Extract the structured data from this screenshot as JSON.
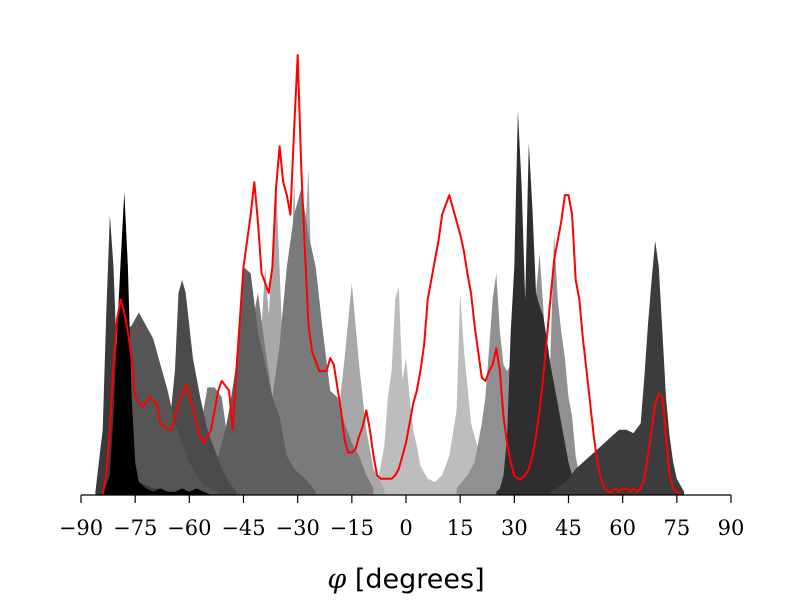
{
  "chart_data": {
    "type": "area",
    "title": "",
    "xlabel_symbol": "φ",
    "xlabel_text": " [degrees]",
    "ylabel": "",
    "xlim": [
      -90,
      90
    ],
    "xticks": [
      -90,
      -75,
      -60,
      -45,
      -30,
      -15,
      0,
      15,
      30,
      45,
      60,
      75,
      90
    ],
    "xtick_labels": [
      "−90",
      "−75",
      "−60",
      "−45",
      "−30",
      "−15",
      "0",
      "15",
      "30",
      "45",
      "60",
      "75",
      "90"
    ],
    "ylim": [
      0,
      1.0
    ],
    "y_axis_visible": false,
    "grid": false,
    "legend": "none",
    "distributions": [
      {
        "color": "#bdbdbd",
        "x": [
          -8,
          -6,
          -5,
          -4,
          -3,
          -2,
          -1,
          0,
          1,
          2,
          3,
          4,
          6,
          8,
          10,
          12,
          14,
          15,
          16,
          18,
          20,
          22,
          24,
          26
        ],
        "values": [
          0.03,
          0.15,
          0.3,
          0.38,
          0.6,
          0.64,
          0.35,
          0.42,
          0.3,
          0.2,
          0.15,
          0.09,
          0.05,
          0.04,
          0.06,
          0.12,
          0.26,
          0.62,
          0.45,
          0.22,
          0.14,
          0.08,
          0.04,
          0.02
        ]
      },
      {
        "color": "#a8a8a8",
        "x": [
          -46,
          -43,
          -41,
          -40,
          -39,
          -38,
          -36,
          -34,
          -32,
          -31,
          -30,
          -29,
          -28,
          -27,
          -26,
          -25,
          -23,
          -22,
          -21,
          -19,
          -17,
          -15,
          -13,
          -11,
          -9,
          -6
        ],
        "values": [
          0.02,
          0.1,
          0.25,
          0.52,
          0.7,
          0.55,
          0.97,
          0.42,
          0.56,
          0.98,
          0.62,
          0.5,
          0.8,
          1.0,
          0.6,
          0.3,
          0.46,
          0.3,
          0.26,
          0.22,
          0.42,
          0.65,
          0.4,
          0.2,
          0.08,
          0.02
        ]
      },
      {
        "color": "#909090",
        "x": [
          14,
          17,
          19,
          20,
          21,
          22,
          23,
          24,
          25,
          26,
          27,
          28,
          30,
          31,
          32,
          33,
          35,
          36,
          37,
          38,
          39,
          40,
          41,
          42,
          43,
          44,
          45,
          46,
          47,
          48,
          50,
          52
        ],
        "values": [
          0.02,
          0.06,
          0.1,
          0.16,
          0.22,
          0.3,
          0.45,
          0.6,
          0.68,
          0.5,
          0.4,
          0.38,
          0.42,
          0.4,
          0.46,
          0.36,
          0.6,
          0.62,
          0.74,
          0.58,
          0.4,
          0.42,
          0.8,
          0.6,
          0.5,
          0.42,
          0.3,
          0.24,
          0.12,
          0.06,
          0.02,
          0.01
        ]
      },
      {
        "color": "#7a7a7a",
        "x": [
          -68,
          -64,
          -60,
          -57,
          -55,
          -53,
          -51,
          -50,
          -49,
          -47,
          -45,
          -43,
          -41,
          -39,
          -37,
          -35,
          -33,
          -31,
          -29,
          -27,
          -25,
          -23,
          -21,
          -19,
          -17,
          -15,
          -13,
          -11,
          -9
        ],
        "values": [
          0.01,
          0.04,
          0.1,
          0.2,
          0.33,
          0.33,
          0.3,
          0.22,
          0.16,
          0.22,
          0.32,
          0.5,
          0.62,
          0.45,
          0.3,
          0.46,
          0.7,
          0.86,
          0.94,
          0.8,
          0.7,
          0.5,
          0.32,
          0.3,
          0.22,
          0.16,
          0.12,
          0.06,
          0.02
        ]
      },
      {
        "color": "#5e5e5e",
        "x": [
          -73,
          -70,
          -68,
          -66,
          -64,
          -62,
          -60,
          -58,
          -56,
          -54,
          -52,
          -50,
          -49,
          -47,
          -45,
          -43,
          -41,
          -39,
          -37,
          -35,
          -33,
          -31,
          -29,
          -27,
          -25
        ],
        "values": [
          0.02,
          0.06,
          0.08,
          0.1,
          0.11,
          0.1,
          0.12,
          0.1,
          0.08,
          0.06,
          0.12,
          0.2,
          0.26,
          0.4,
          0.7,
          0.68,
          0.5,
          0.4,
          0.3,
          0.24,
          0.12,
          0.08,
          0.06,
          0.04,
          0.01
        ]
      },
      {
        "color": "#4a4a4a",
        "x": [
          -78,
          -76,
          -74,
          -72,
          -70,
          -68,
          -66,
          -64,
          -63,
          -62,
          -61,
          -59,
          -57,
          -55,
          -53,
          -51,
          -49,
          -47
        ],
        "values": [
          0.01,
          0.04,
          0.06,
          0.08,
          0.1,
          0.12,
          0.16,
          0.38,
          0.62,
          0.66,
          0.62,
          0.42,
          0.3,
          0.2,
          0.14,
          0.08,
          0.04,
          0.01
        ]
      },
      {
        "color": "#555555",
        "x": [
          -84,
          -82,
          -80,
          -78,
          -76,
          -74,
          -72,
          -70,
          -68,
          -66,
          -64,
          -62,
          -60,
          -58,
          -56,
          -52
        ],
        "values": [
          0.02,
          0.1,
          0.35,
          0.5,
          0.52,
          0.56,
          0.52,
          0.48,
          0.4,
          0.32,
          0.22,
          0.16,
          0.1,
          0.06,
          0.03,
          0.01
        ]
      },
      {
        "color": "#3a3a3a",
        "x": [
          -86,
          -84,
          -83,
          -82,
          -81,
          -80,
          -79,
          -78,
          -77,
          -76,
          -75,
          -74,
          -72,
          -70,
          -68,
          -66
        ],
        "values": [
          0.01,
          0.2,
          0.56,
          0.86,
          0.7,
          0.4,
          0.26,
          0.3,
          0.2,
          0.1,
          0.06,
          0.04,
          0.03,
          0.02,
          0.02,
          0.01
        ]
      },
      {
        "color": "#000000",
        "x": [
          -84,
          -83,
          -82,
          -81,
          -80,
          -79,
          -78,
          -77,
          -76,
          -75,
          -74,
          -72,
          -70,
          -68,
          -66,
          -64,
          -62,
          -60,
          -58,
          -56,
          -54
        ],
        "values": [
          0.01,
          0.03,
          0.06,
          0.24,
          0.5,
          0.72,
          0.93,
          0.7,
          0.3,
          0.1,
          0.04,
          0.02,
          0.01,
          0.02,
          0.01,
          0.01,
          0.02,
          0.01,
          0.02,
          0.01,
          0.0
        ]
      },
      {
        "color": "#2e2e2e",
        "x": [
          25,
          26,
          27,
          28,
          29,
          30,
          31,
          32,
          33,
          34,
          35,
          36,
          37,
          38,
          39,
          40,
          41,
          42,
          43,
          44,
          45,
          46,
          47,
          48,
          50
        ],
        "values": [
          0.01,
          0.02,
          0.06,
          0.18,
          0.5,
          0.7,
          1.18,
          0.95,
          0.6,
          1.08,
          0.88,
          0.62,
          0.58,
          0.55,
          0.48,
          0.4,
          0.34,
          0.28,
          0.22,
          0.16,
          0.1,
          0.06,
          0.04,
          0.02,
          0.01
        ]
      },
      {
        "color": "#3c3c3c",
        "x": [
          40,
          43,
          45,
          47,
          49,
          51,
          53,
          55,
          57,
          59,
          61,
          63,
          65,
          66,
          67,
          68,
          69,
          70,
          71,
          72,
          73,
          74,
          75,
          77
        ],
        "values": [
          0.01,
          0.03,
          0.05,
          0.08,
          0.1,
          0.12,
          0.14,
          0.16,
          0.18,
          0.2,
          0.2,
          0.19,
          0.22,
          0.36,
          0.52,
          0.66,
          0.78,
          0.7,
          0.5,
          0.3,
          0.18,
          0.1,
          0.05,
          0.01
        ]
      },
      {
        "color": "#ff0000",
        "kind": "line",
        "x": [
          -84,
          -83,
          -82,
          -81,
          -80,
          -79,
          -78,
          -77,
          -76,
          -75,
          -73,
          -71,
          -69,
          -68,
          -66,
          -65,
          -63,
          -61,
          -60,
          -58,
          -57,
          -56,
          -54,
          -52,
          -51,
          -49,
          -48,
          -47,
          -45,
          -43,
          -42,
          -41,
          -40,
          -38,
          -37,
          -36,
          -35,
          -34,
          -33,
          -32,
          -31,
          -30,
          -29,
          -28,
          -27,
          -26,
          -24,
          -23,
          -22,
          -21,
          -20,
          -18,
          -17,
          -16,
          -15,
          -14,
          -13,
          -12,
          -11,
          -10,
          -9,
          -8,
          -7,
          -6,
          -4,
          -3,
          -2,
          -1,
          0,
          1,
          2,
          3,
          4,
          5,
          6,
          8,
          9,
          10,
          12,
          13,
          15,
          16,
          17,
          18,
          19,
          20,
          21,
          22,
          23,
          24,
          25,
          26,
          27,
          28,
          29,
          30,
          31,
          32,
          33,
          34,
          35,
          36,
          37,
          38,
          39,
          40,
          41,
          42,
          43,
          44,
          45,
          46,
          47,
          48,
          49,
          50,
          51,
          52,
          53,
          54,
          55,
          56,
          57,
          58,
          59,
          60,
          61,
          62,
          63,
          64,
          65,
          66,
          67,
          68,
          69,
          70,
          71,
          72,
          73,
          74,
          75,
          76
        ],
        "values": [
          0.0,
          0.06,
          0.2,
          0.4,
          0.54,
          0.6,
          0.56,
          0.5,
          0.42,
          0.3,
          0.27,
          0.3,
          0.28,
          0.22,
          0.2,
          0.2,
          0.28,
          0.34,
          0.31,
          0.22,
          0.18,
          0.16,
          0.2,
          0.32,
          0.35,
          0.32,
          0.2,
          0.38,
          0.7,
          0.86,
          0.96,
          0.84,
          0.68,
          0.62,
          0.7,
          0.94,
          1.07,
          0.96,
          0.92,
          0.86,
          1.12,
          1.35,
          1.0,
          0.75,
          0.52,
          0.44,
          0.38,
          0.38,
          0.38,
          0.42,
          0.4,
          0.26,
          0.17,
          0.13,
          0.13,
          0.14,
          0.18,
          0.21,
          0.26,
          0.2,
          0.12,
          0.06,
          0.05,
          0.05,
          0.05,
          0.06,
          0.08,
          0.12,
          0.16,
          0.22,
          0.28,
          0.32,
          0.38,
          0.46,
          0.6,
          0.72,
          0.78,
          0.86,
          0.92,
          0.88,
          0.8,
          0.75,
          0.68,
          0.62,
          0.52,
          0.44,
          0.36,
          0.35,
          0.38,
          0.4,
          0.45,
          0.38,
          0.24,
          0.16,
          0.1,
          0.06,
          0.05,
          0.05,
          0.06,
          0.08,
          0.12,
          0.18,
          0.26,
          0.36,
          0.48,
          0.6,
          0.72,
          0.78,
          0.84,
          0.92,
          0.92,
          0.86,
          0.66,
          0.6,
          0.48,
          0.38,
          0.28,
          0.18,
          0.1,
          0.05,
          0.02,
          0.01,
          0.01,
          0.02,
          0.01,
          0.02,
          0.02,
          0.01,
          0.02,
          0.01,
          0.02,
          0.05,
          0.12,
          0.2,
          0.28,
          0.31,
          0.3,
          0.18,
          0.06,
          0.02,
          0.01,
          0.0
        ]
      }
    ]
  }
}
